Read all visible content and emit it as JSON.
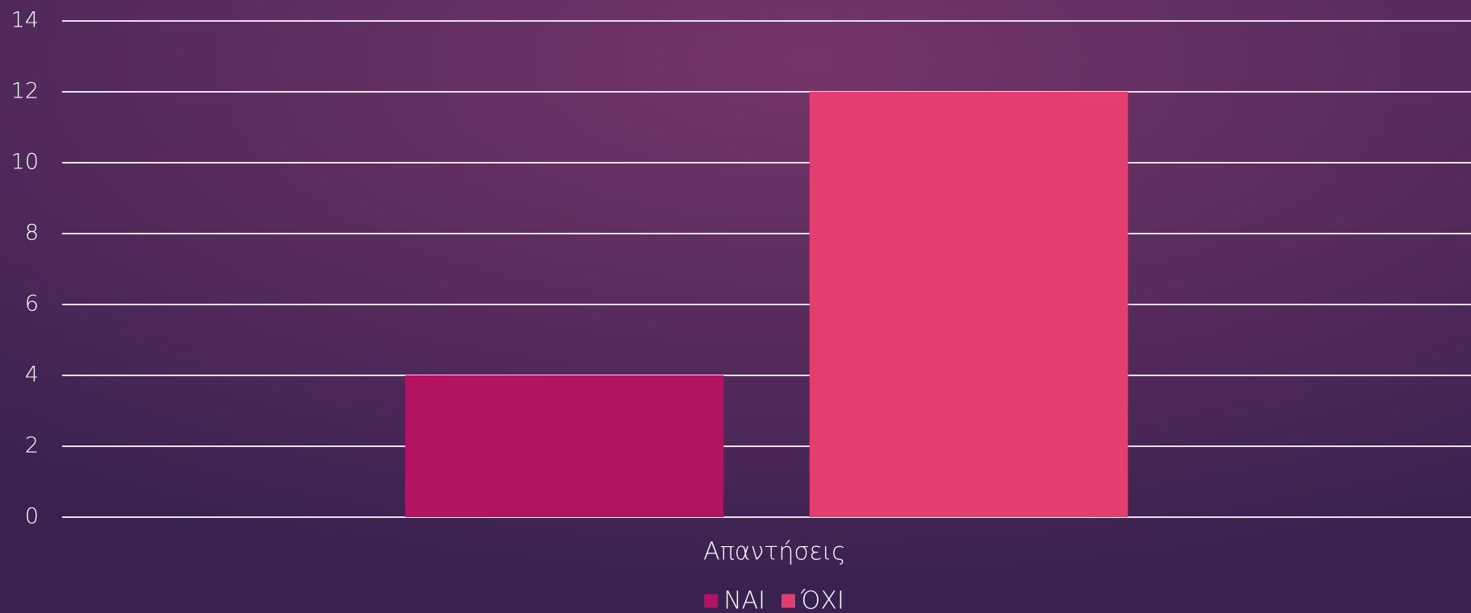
{
  "chart_data": {
    "type": "bar",
    "categories": [
      "Απαντήσεις"
    ],
    "series": [
      {
        "name": "ΝΑΙ",
        "color": "#b31462",
        "values": [
          4
        ]
      },
      {
        "name": "ΌΧΙ",
        "color": "#e23e6f",
        "values": [
          12
        ]
      }
    ],
    "ylim": [
      0,
      14
    ],
    "yticks": [
      0,
      2,
      4,
      6,
      8,
      10,
      12,
      14
    ],
    "grid": true,
    "legend": "bottom"
  }
}
